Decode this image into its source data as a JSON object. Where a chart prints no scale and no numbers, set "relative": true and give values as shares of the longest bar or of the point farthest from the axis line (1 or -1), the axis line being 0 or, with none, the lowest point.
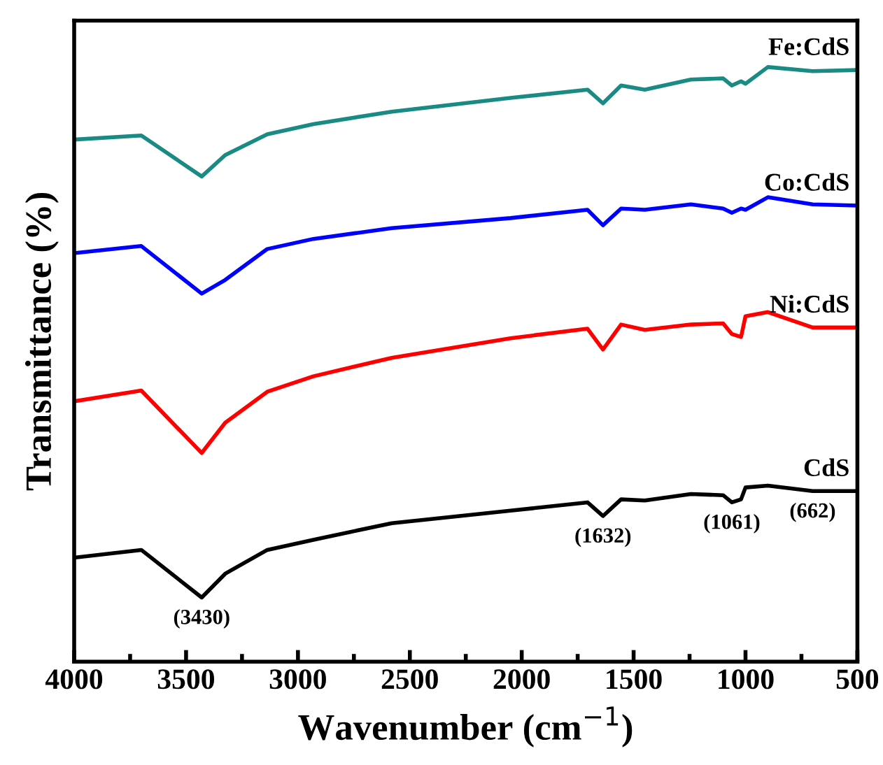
{
  "chart_data": {
    "type": "line",
    "relative": true,
    "xlabel": "Wavenumber (cm$^{−1}$)",
    "ylabel": "Transmittance (%)",
    "x": [
      4000,
      3700,
      3430,
      3325,
      3137,
      2931,
      2581,
      2050,
      1706,
      1637,
      1556,
      1450,
      1244,
      1100,
      1061,
      1020,
      1000,
      900,
      700,
      500
    ],
    "xlim": [
      4000,
      500
    ],
    "xticks": [
      4000,
      3500,
      3000,
      2500,
      2000,
      1500,
      1000,
      500
    ],
    "series": [
      {
        "name": "Fe:CdS",
        "color": "#1a8a84",
        "values": [
          0.878,
          0.885,
          0.816,
          0.852,
          0.887,
          0.904,
          0.925,
          0.948,
          0.962,
          0.939,
          0.969,
          0.962,
          0.979,
          0.981,
          0.969,
          0.976,
          0.972,
          1.0,
          0.993,
          0.995
        ]
      },
      {
        "name": "Co:CdS",
        "color": "#0000ff",
        "values": [
          0.687,
          0.699,
          0.619,
          0.642,
          0.694,
          0.711,
          0.729,
          0.746,
          0.76,
          0.734,
          0.762,
          0.76,
          0.769,
          0.762,
          0.755,
          0.762,
          0.76,
          0.781,
          0.769,
          0.767
        ]
      },
      {
        "name": "Ni:CdS",
        "color": "#ff0000",
        "values": [
          0.438,
          0.456,
          0.351,
          0.402,
          0.454,
          0.48,
          0.511,
          0.544,
          0.56,
          0.525,
          0.567,
          0.558,
          0.567,
          0.569,
          0.551,
          0.546,
          0.581,
          0.588,
          0.562,
          0.562
        ]
      },
      {
        "name": "CdS",
        "color": "#000000",
        "values": [
          0.175,
          0.188,
          0.108,
          0.148,
          0.188,
          0.205,
          0.233,
          0.254,
          0.268,
          0.245,
          0.273,
          0.271,
          0.282,
          0.28,
          0.268,
          0.273,
          0.293,
          0.296,
          0.287,
          0.287
        ]
      }
    ],
    "annotations": [
      {
        "text": "(3430)",
        "x": 3430,
        "y": 0.108
      },
      {
        "text": "(1632)",
        "x": 1637,
        "y": 0.245
      },
      {
        "text": "(1061)",
        "x": 1061,
        "y": 0.268
      },
      {
        "text": "(662)",
        "x": 700,
        "y": 0.287
      }
    ],
    "grid": false,
    "legend": false,
    "marker": "none",
    "line_style": "solid"
  }
}
